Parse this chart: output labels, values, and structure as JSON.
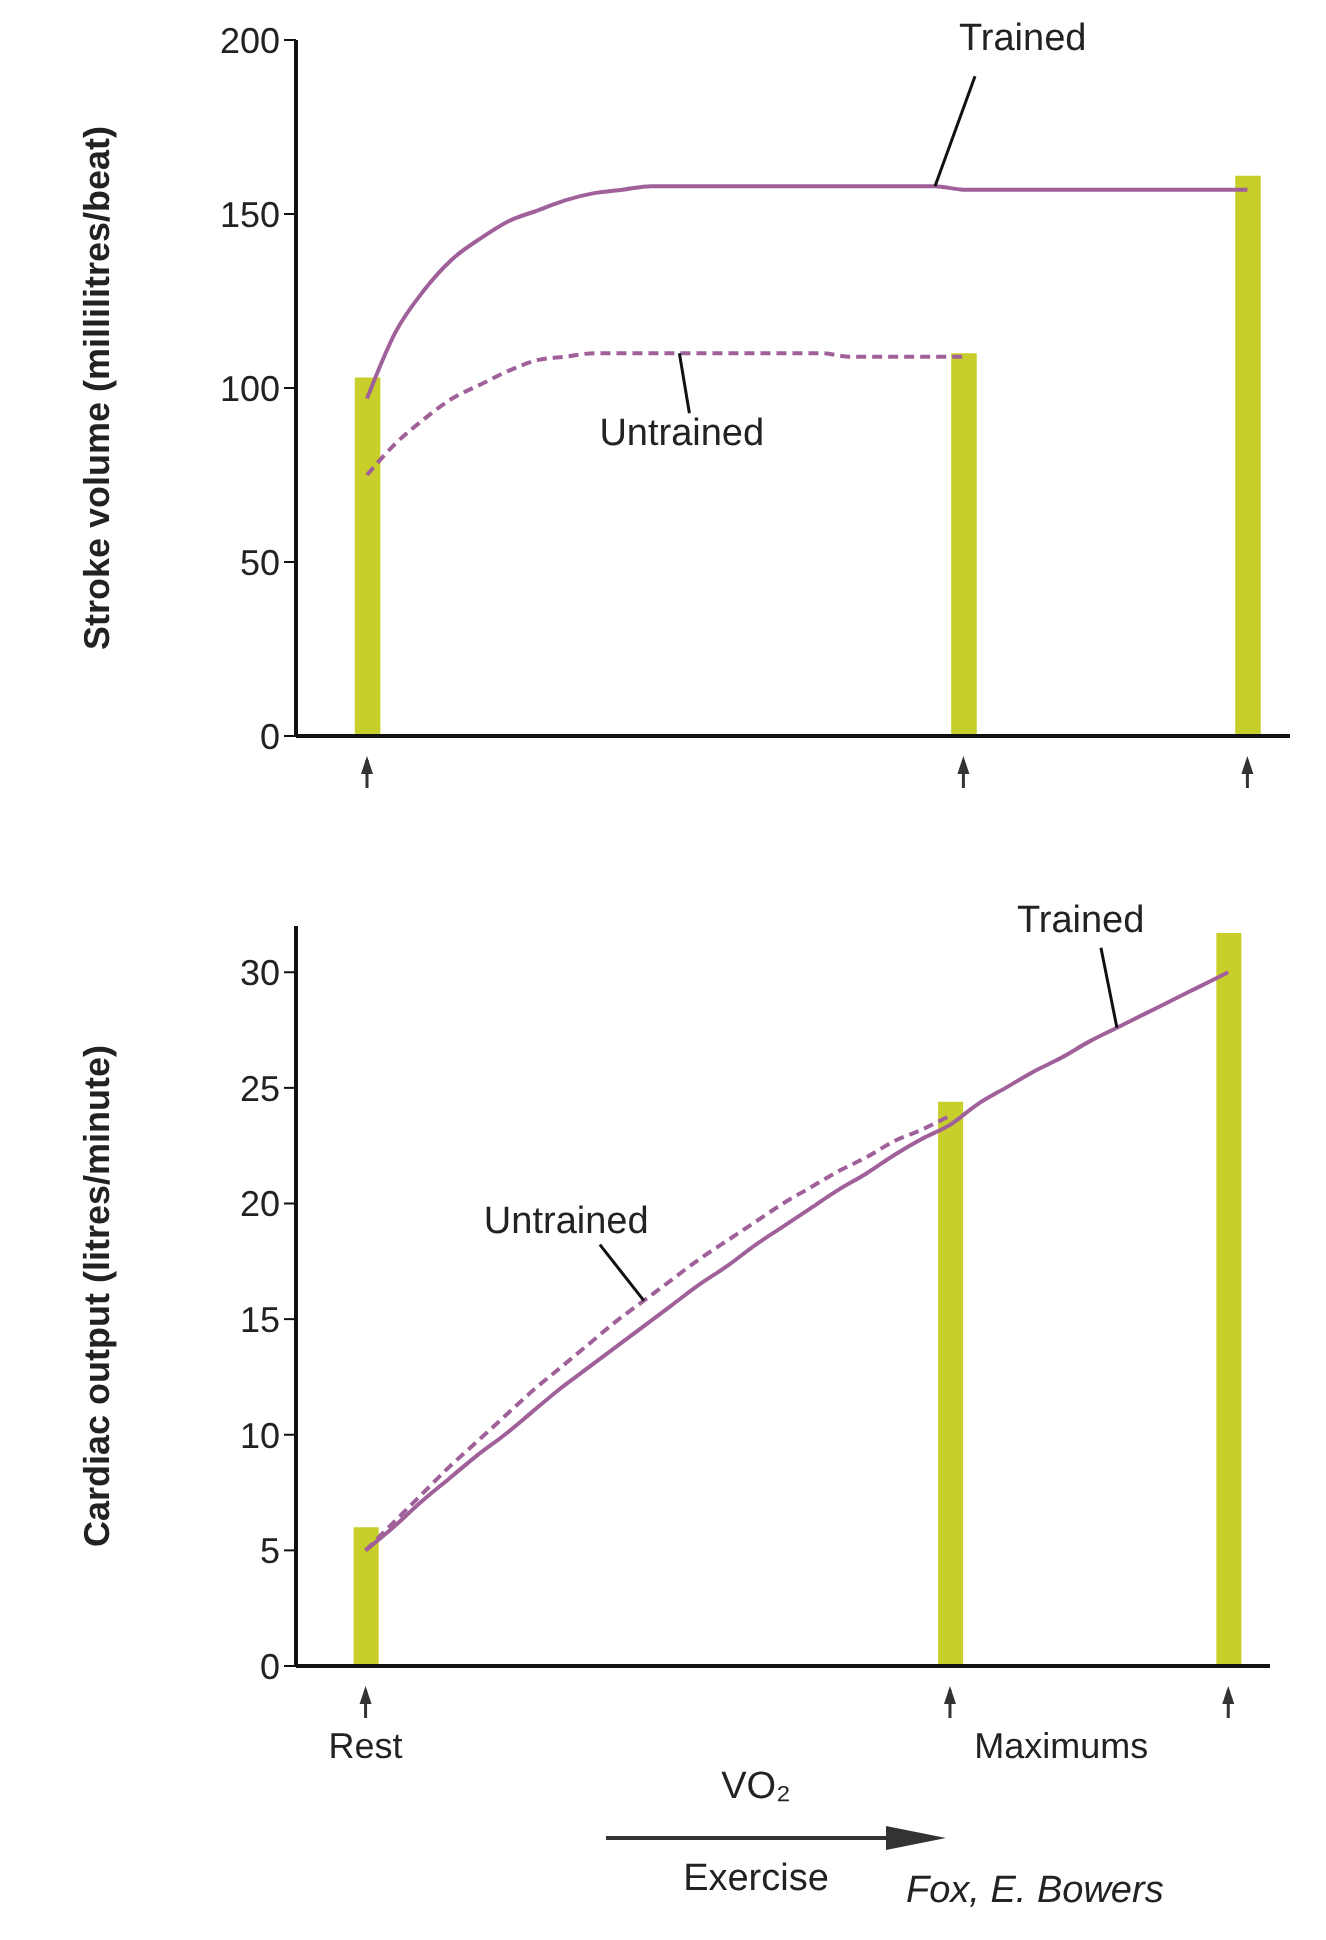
{
  "chart_data": [
    {
      "type": "bar",
      "ylabel": "Stroke volume (millilitres/beat)",
      "ylim": [
        0,
        200
      ],
      "yticks": [
        0,
        50,
        100,
        150,
        200
      ],
      "marker": "none",
      "categories": [
        null,
        null,
        null,
        null,
        null,
        null,
        null,
        null,
        null,
        null,
        null,
        null,
        null,
        null,
        null,
        null,
        null,
        null,
        null,
        null,
        null,
        null,
        null,
        null,
        null,
        null,
        null,
        null,
        null,
        null,
        null,
        null,
        null,
        null,
        null
      ],
      "series": [
        {
          "color": "#c8cf2a",
          "values": [
            null,
            null,
            103,
            null,
            null,
            null,
            null,
            null,
            null,
            null,
            null,
            null,
            null,
            null,
            null,
            null,
            null,
            null,
            null,
            null,
            null,
            null,
            null,
            110,
            null,
            null,
            null,
            null,
            null,
            null,
            null,
            null,
            null,
            161,
            null
          ]
        },
        {
          "type": "line",
          "name": "Trained",
          "color": "#a0609a",
          "line_style": "solid",
          "values": [
            null,
            null,
            97,
            116,
            128,
            137,
            143,
            148,
            151,
            154,
            156,
            157,
            158,
            158,
            158,
            158,
            158,
            158,
            158,
            158,
            158,
            158,
            158,
            157,
            157,
            157,
            157,
            157,
            157,
            157,
            157,
            157,
            157,
            157,
            null
          ]
        },
        {
          "type": "line",
          "name": "Untrained",
          "color": "#a0609a",
          "line_style": "dashed",
          "values": [
            null,
            null,
            75,
            84,
            91,
            97,
            101,
            105,
            108,
            109,
            110,
            110,
            110,
            110,
            110,
            110,
            110,
            110,
            110,
            109,
            109,
            109,
            109,
            109,
            null,
            null,
            null,
            null,
            null,
            null,
            null,
            null,
            null,
            null,
            null
          ]
        }
      ]
    },
    {
      "type": "bar",
      "ylabel": "Cardiac output (litres/minute)",
      "xlabel": "VO₂",
      "ylim": [
        0,
        32
      ],
      "yticks": [
        0,
        5,
        10,
        15,
        20,
        25,
        30
      ],
      "marker": "none",
      "annotations": [
        "Exercise",
        "Fox, E. Bowers"
      ],
      "categories": [
        null,
        null,
        "Rest",
        null,
        null,
        null,
        null,
        null,
        null,
        null,
        null,
        null,
        null,
        null,
        null,
        null,
        null,
        null,
        null,
        null,
        null,
        null,
        null,
        null,
        null,
        null,
        null,
        "Maximums",
        null,
        null,
        null,
        null,
        null,
        null,
        null
      ],
      "series": [
        {
          "color": "#c8cf2a",
          "values": [
            null,
            null,
            6,
            null,
            null,
            null,
            null,
            null,
            null,
            null,
            null,
            null,
            null,
            null,
            null,
            null,
            null,
            null,
            null,
            null,
            null,
            null,
            null,
            24.4,
            null,
            null,
            null,
            null,
            null,
            null,
            null,
            null,
            null,
            31.7,
            null
          ]
        },
        {
          "type": "line",
          "name": "Trained",
          "color": "#a0609a",
          "line_style": "solid",
          "values": [
            null,
            null,
            5,
            6,
            7.1,
            8.1,
            9.1,
            10,
            11,
            12,
            12.9,
            13.8,
            14.7,
            15.6,
            16.5,
            17.3,
            18.2,
            19,
            19.8,
            20.6,
            21.3,
            22.1,
            22.8,
            23.4,
            24.3,
            25,
            25.7,
            26.3,
            27,
            27.6,
            28.2,
            28.8,
            29.4,
            30,
            null
          ]
        },
        {
          "type": "line",
          "name": "Untrained",
          "color": "#a0609a",
          "line_style": "dashed",
          "values": [
            null,
            null,
            5,
            6.2,
            7.4,
            8.6,
            9.7,
            10.8,
            11.9,
            12.9,
            13.9,
            14.9,
            15.8,
            16.7,
            17.6,
            18.4,
            19.2,
            20,
            20.7,
            21.4,
            22,
            22.7,
            23.2,
            23.8,
            null,
            null,
            null,
            null,
            null,
            null,
            null,
            null,
            null,
            null,
            null
          ]
        }
      ]
    }
  ]
}
